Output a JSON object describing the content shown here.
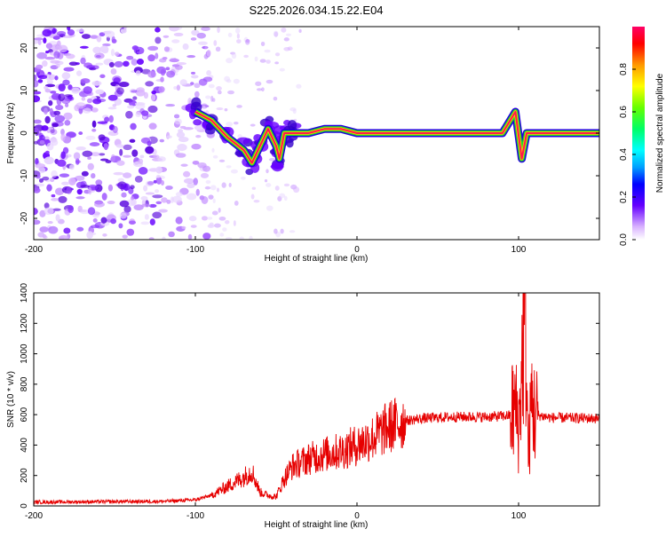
{
  "figure": {
    "title": "S225.2026.034.15.22.E04"
  },
  "chart_data": [
    {
      "type": "heatmap",
      "title": "S225.2026.034.15.22.E04",
      "xlabel": "Height of straight line (km)",
      "ylabel": "Frequency (Hz)",
      "xlim": [
        -200,
        150
      ],
      "ylim": [
        -25,
        25
      ],
      "xticks": [
        -200,
        -100,
        0,
        100
      ],
      "yticks": [
        -20,
        -10,
        0,
        10,
        20
      ],
      "colorbar": {
        "label": "Normalized spectral amplitude",
        "range": [
          0,
          1
        ],
        "ticks": [
          0.0,
          0.2,
          0.4,
          0.6,
          0.8
        ],
        "tick_labels": [
          "0.0",
          "0.2",
          "0.4",
          "0.6",
          "0.8"
        ]
      },
      "ridge": {
        "description": "dominant spectral line",
        "points": [
          [
            -100,
            5
          ],
          [
            -90,
            3
          ],
          [
            -80,
            -1
          ],
          [
            -70,
            -4
          ],
          [
            -65,
            -7
          ],
          [
            -60,
            -3
          ],
          [
            -55,
            1
          ],
          [
            -50,
            -3
          ],
          [
            -48,
            -6
          ],
          [
            -45,
            0
          ],
          [
            -40,
            0
          ],
          [
            -30,
            0
          ],
          [
            -20,
            1
          ],
          [
            -10,
            1
          ],
          [
            0,
            0
          ],
          [
            20,
            0
          ],
          [
            60,
            0
          ],
          [
            90,
            0
          ],
          [
            98,
            5
          ],
          [
            102,
            -6
          ],
          [
            105,
            0
          ],
          [
            150,
            0
          ]
        ]
      },
      "colors": {
        "low": "#d9b3ff",
        "mid": "#6600ff",
        "high": "#ff0044",
        "line_core": "#ff1a4d",
        "line_edge": "#22dd22"
      }
    },
    {
      "type": "line",
      "xlabel": "Height of straight line (km)",
      "ylabel": "SNR (10 * v/v)",
      "xlim": [
        -200,
        150
      ],
      "ylim": [
        0,
        1400
      ],
      "xticks": [
        -200,
        -100,
        0,
        100
      ],
      "yticks": [
        0,
        200,
        400,
        600,
        800,
        1000,
        1200,
        1400
      ],
      "color": "#e60000",
      "envelope": {
        "x": [
          -200,
          -120,
          -100,
          -90,
          -80,
          -70,
          -65,
          -60,
          -55,
          -50,
          -45,
          -40,
          -30,
          -20,
          -10,
          0,
          10,
          20,
          30,
          40,
          60,
          80,
          90,
          95,
          98,
          100,
          102,
          104,
          106,
          108,
          110,
          120,
          150
        ],
        "y": [
          25,
          30,
          40,
          70,
          130,
          190,
          230,
          90,
          70,
          60,
          180,
          260,
          310,
          340,
          360,
          400,
          450,
          520,
          560,
          575,
          585,
          585,
          590,
          595,
          650,
          500,
          900,
          1380,
          300,
          700,
          600,
          580,
          575
        ]
      }
    }
  ]
}
